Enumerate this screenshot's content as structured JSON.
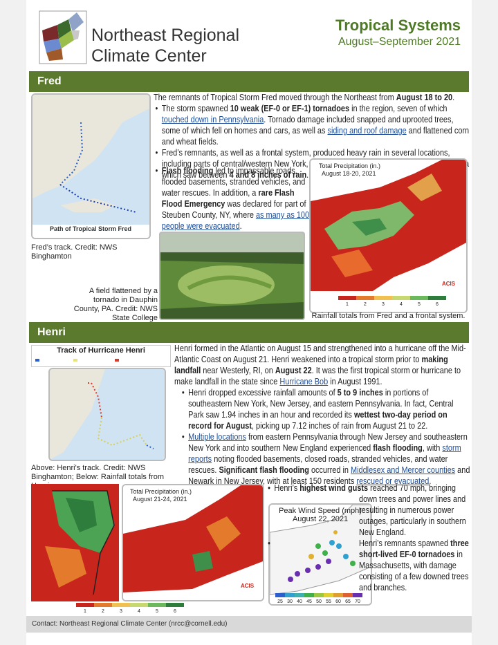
{
  "header": {
    "org_line1": "Northeast Regional",
    "org_line2": "Climate Center",
    "title": "Tropical Systems",
    "subtitle": "August–September 2021"
  },
  "fred": {
    "heading": "Fred",
    "intro": [
      "The remnants of Tropical Storm Fred moved through the Northeast from ",
      {
        "bold": "August 18 to 20"
      },
      "."
    ],
    "bullets": [
      [
        "The storm spawned ",
        {
          "bold": "10 weak (EF-0 or EF-1) tornadoes"
        },
        " in the region, seven of which ",
        {
          "link": "touched down in Pennsylvania"
        },
        ". Tornado damage included snapped and uprooted trees, some of which fell on homes and cars, as well as ",
        {
          "link": "siding and roof damage"
        },
        " and flattened corn and wheat fields."
      ],
      [
        "Fred’s remnants, as well as a frontal system, produced heavy rain in several locations, including parts of central/western New York, northern Connecticut, and central Pennsylvania which saw between ",
        {
          "bold": "4 and 8 inches of rain"
        },
        "."
      ],
      [
        {
          "bold": "Flash flooding"
        },
        " led to impassable roads, flooded basements, stranded vehicles, and water rescues. In addition, a ",
        {
          "bold": "rare Flash Flood Emergency"
        },
        " was declared for part of Steuben County, NY, where ",
        {
          "link": "as many as 100 people were evacuated"
        },
        "."
      ]
    ],
    "track_map_title": "Path of Tropical Storm Fred",
    "track_caption": "Fred’s track. Credit: NWS Binghamton",
    "photo_caption": "A field flattened by a tornado in Dauphin County, PA. Credit: NWS State College",
    "precip_title": "Total Precipitation (in.)",
    "precip_dates": "August 18-20, 2021",
    "precip_legend": [
      "1",
      "2",
      "3",
      "4",
      "5",
      "6"
    ],
    "precip_credit": "ACIS",
    "precip_caption": "Rainfall totals from Fred and a frontal system."
  },
  "henri": {
    "heading": "Henri",
    "intro": [
      "Henri formed in the Atlantic on August 15 and strengthened into a hurricane off the Mid-Atlantic Coast on August 21. Henri weakened into a tropical storm prior to ",
      {
        "bold": "making landfall"
      },
      " near Westerly, RI, on ",
      {
        "bold": "August 22"
      },
      ". It was the first tropical storm or hurricane to make landfall in the state since ",
      {
        "link": "Hurricane Bob"
      },
      " in August 1991."
    ],
    "bullets": [
      [
        "Henri dropped excessive rainfall amounts of ",
        {
          "bold": "5 to 9 inches"
        },
        " in portions of southeastern New York, New Jersey, and eastern Pennsylvania. In fact, Central Park saw 1.94 inches in an hour and recorded its ",
        {
          "bold": "wettest two-day period on record for August"
        },
        ", picking up 7.12 inches of rain from August 21 to 22."
      ],
      [
        {
          "link": "Multiple locations"
        },
        " from eastern Pennsylvania through New Jersey and southeastern New York and into southern New England experienced ",
        {
          "bold": "flash flooding"
        },
        ", with ",
        {
          "link": "storm reports"
        },
        " noting flooded basements, closed roads, stranded vehicles, and water rescues. ",
        {
          "bold": "Significant flash flooding"
        },
        " occurred in ",
        {
          "link": "Middlesex and Mercer counties"
        },
        " and Newark in New Jersey, with at least 150 residents ",
        {
          "link": "rescued or evacuated"
        },
        "."
      ],
      [
        "Henri’s ",
        {
          "bold": "highest wind gusts"
        },
        " reached 70 mph, bringing down trees and power lines and resulting in numerous power outages, particularly in southern New England."
      ],
      [
        "Henri’s remnants spawned ",
        {
          "bold": "three short-lived EF-0 tornadoes"
        },
        " in Massachusetts, with damage consisting of a few downed trees and branches."
      ]
    ],
    "track_title": "Track of Hurricane Henri",
    "track_caption": "Above: Henri's track. Credit: NWS Binghamton; Below: Rainfall totals from Henri.",
    "precip_title": "Total Precipitation (in.)",
    "precip_dates": "August 21-24, 2021",
    "precip_legend": [
      "1",
      "2",
      "3",
      "4",
      "5",
      "6"
    ],
    "precip_credit": "ACIS",
    "wind_title": "Peak Wind Speed (mph)",
    "wind_dates": "August 22, 2021",
    "wind_legend": [
      "25",
      "30",
      "40",
      "45",
      "50",
      "55",
      "60",
      "65",
      "70"
    ]
  },
  "footer": "Contact: Northeast Regional Climate Center (nrcc@cornell.edu)"
}
